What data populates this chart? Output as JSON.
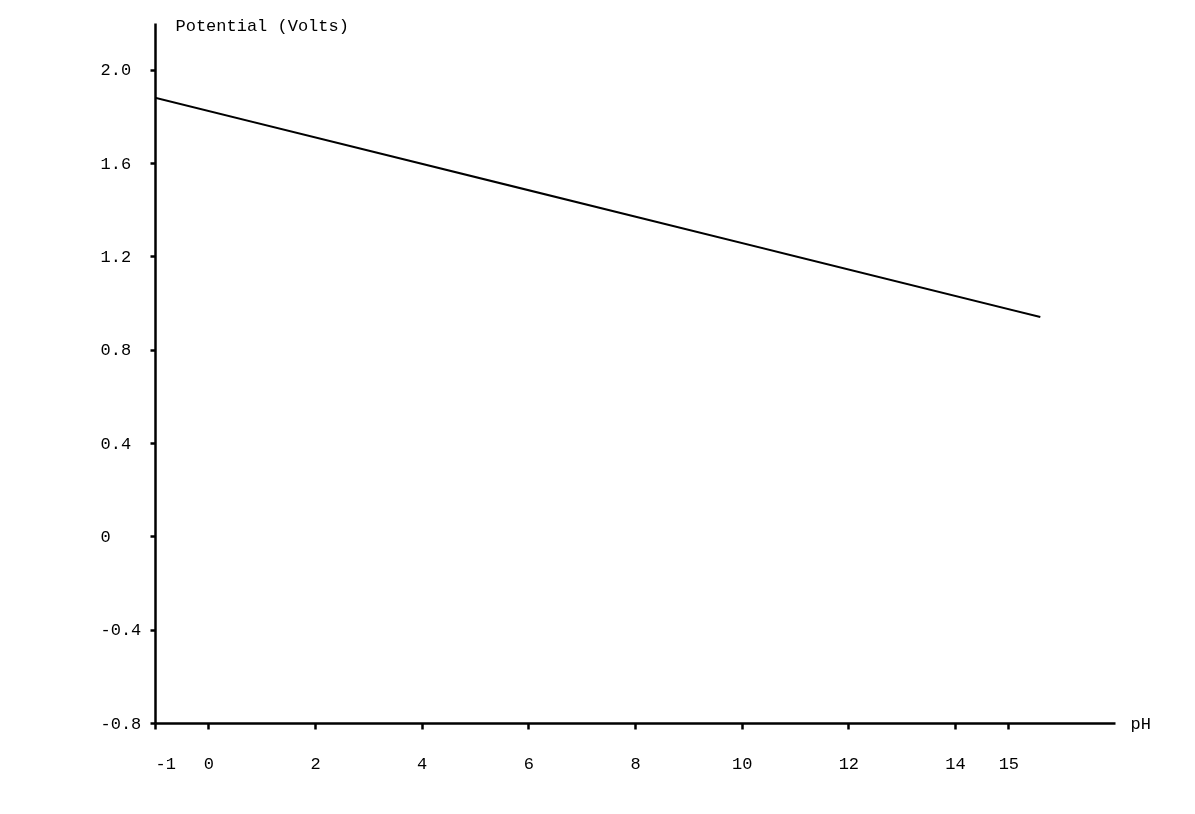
{
  "chart_data": {
    "type": "line",
    "xlabel": "pH",
    "ylabel": "Potential (Volts)",
    "x": [
      -1,
      15.6
    ],
    "series": [
      {
        "color": "#000000",
        "values": [
          1.88,
          0.94
        ]
      }
    ],
    "xlim": [
      -1,
      17
    ],
    "xticks": [
      -1,
      0,
      2,
      4,
      6,
      8,
      10,
      12,
      14,
      15
    ],
    "ylim": [
      -0.8,
      2.2
    ],
    "yticks": [
      {
        "value": -0.8,
        "label": "-0.8"
      },
      {
        "value": -0.4,
        "label": "-0.4"
      },
      0,
      {
        "value": 0.4,
        "label": "0.4"
      },
      {
        "value": 0.8,
        "label": "0.8"
      },
      {
        "value": 1.2,
        "label": "1.2"
      },
      {
        "value": 1.6,
        "label": "1.6"
      },
      {
        "value": 2.0,
        "label": "2.0"
      }
    ],
    "grid": false,
    "marker": "none",
    "line_style": "solid"
  }
}
